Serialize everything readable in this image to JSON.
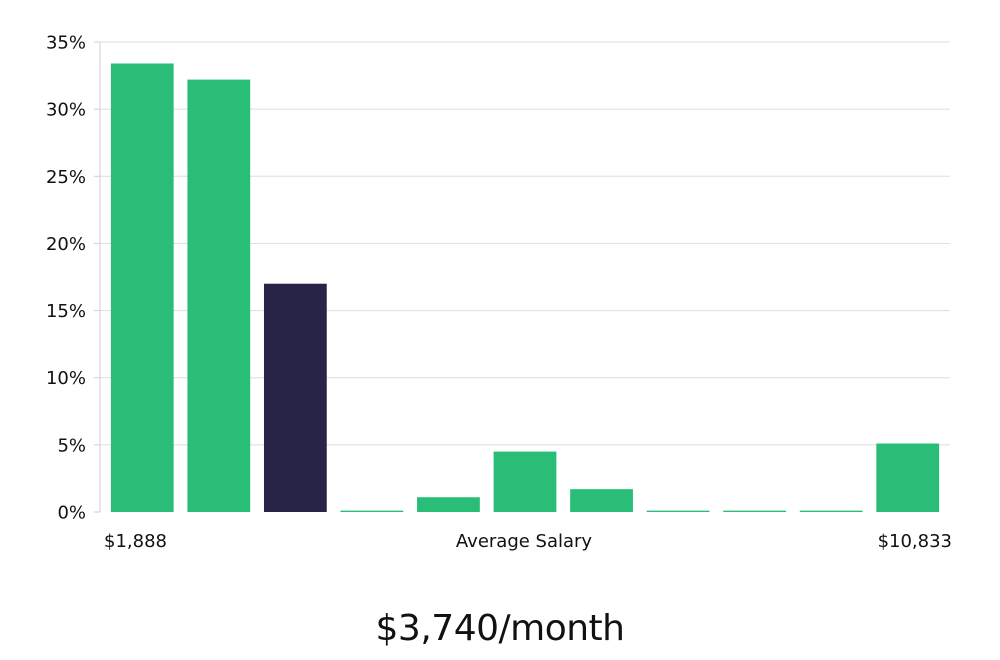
{
  "chart_data": {
    "type": "bar",
    "values": [
      33.4,
      32.2,
      17.0,
      0.1,
      1.1,
      4.5,
      1.7,
      0.1,
      0.1,
      0.1,
      5.1
    ],
    "highlight_index": 2,
    "colors": {
      "bar": "#2abd78",
      "highlight": "#272447",
      "grid": "#dedede",
      "axis": "#cfcfcf"
    },
    "ylim": [
      0,
      35
    ],
    "yticks": [
      0,
      5,
      10,
      15,
      20,
      25,
      30,
      35
    ],
    "ytick_labels": [
      "0%",
      "5%",
      "10%",
      "15%",
      "20%",
      "25%",
      "30%",
      "35%"
    ],
    "x_min_label": "$1,888",
    "xlabel": "Average Salary",
    "x_max_label": "$10,833",
    "grid": true
  },
  "salary_summary": "$3,740/month"
}
